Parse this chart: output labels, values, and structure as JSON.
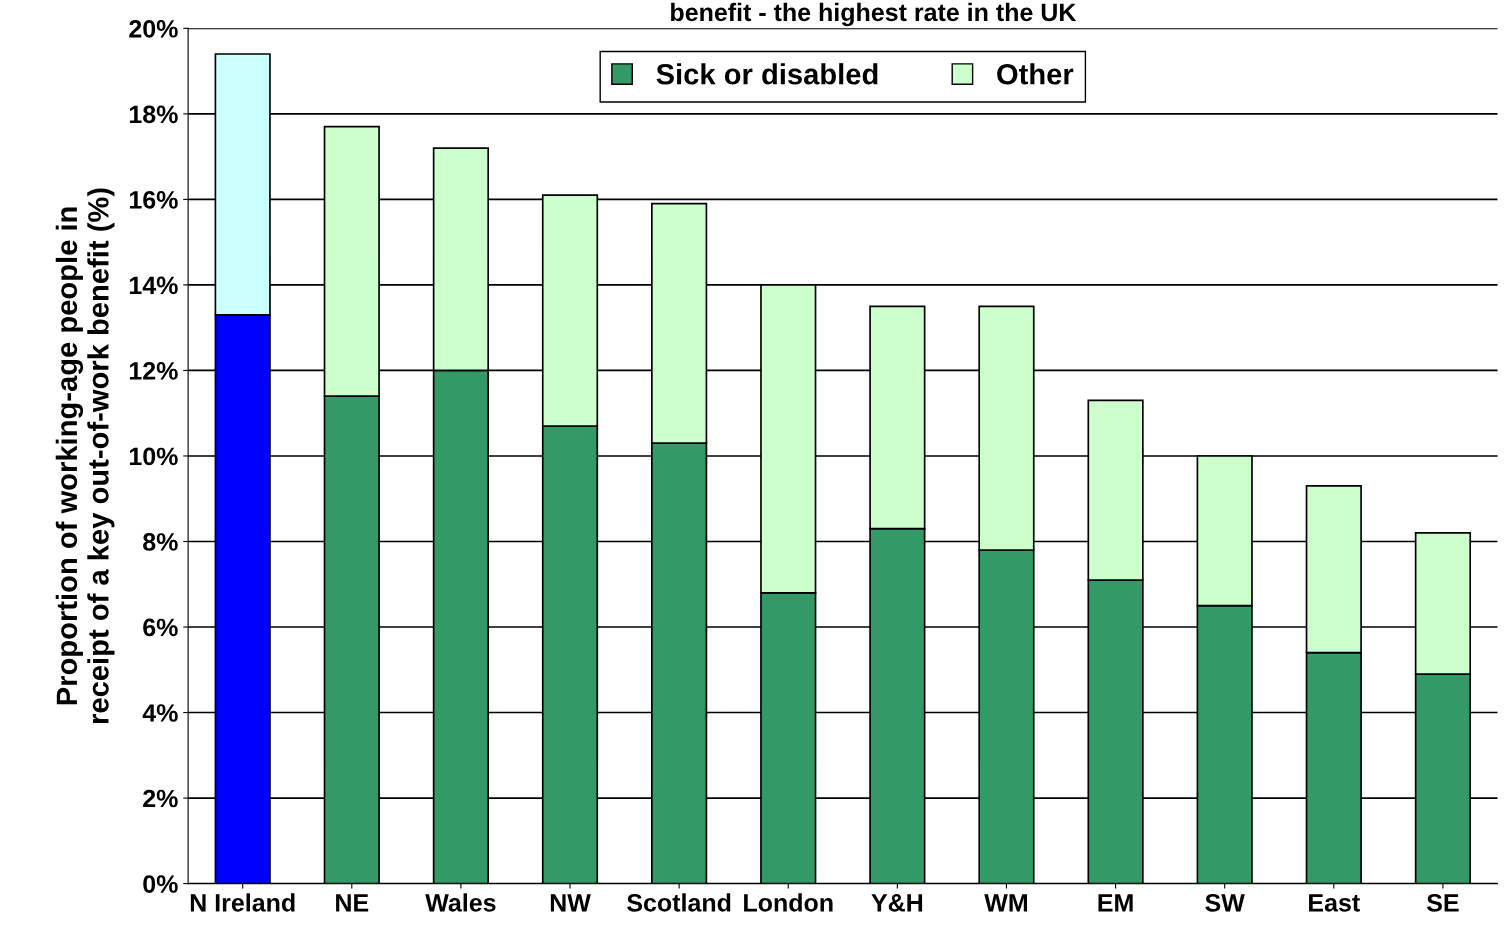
{
  "chart_data": {
    "type": "bar",
    "title": "benefit - the highest rate in the UK",
    "ylabel": "Proportion of working-age people in\nreceipt of a key out-of-work benefit (%)",
    "categories": [
      "N Ireland",
      "NE",
      "Wales",
      "NW",
      "Scotland",
      "London",
      "Y&H",
      "WM",
      "EM",
      "SW",
      "East",
      "SE"
    ],
    "stacked": true,
    "series": [
      {
        "name": "Sick or disabled",
        "color": "#339966",
        "colors": [
          "#0000ff",
          "#339966",
          "#339966",
          "#339966",
          "#339966",
          "#339966",
          "#339966",
          "#339966",
          "#339966",
          "#339966",
          "#339966",
          "#339966"
        ],
        "values": [
          13.3,
          11.4,
          12.0,
          10.7,
          10.3,
          6.8,
          8.3,
          7.8,
          7.1,
          6.5,
          5.4,
          4.9
        ]
      },
      {
        "name": "Other",
        "color": "#ccffcc",
        "colors": [
          "#ccffff",
          "#ccffcc",
          "#ccffcc",
          "#ccffcc",
          "#ccffcc",
          "#ccffcc",
          "#ccffcc",
          "#ccffcc",
          "#ccffcc",
          "#ccffcc",
          "#ccffcc",
          "#ccffcc"
        ],
        "values": [
          6.1,
          6.3,
          5.2,
          5.4,
          5.6,
          7.2,
          5.2,
          5.7,
          4.2,
          3.5,
          3.9,
          3.3
        ]
      }
    ],
    "ylim": [
      0,
      20
    ],
    "yticks": [
      {
        "value": 0,
        "label": "0%"
      },
      {
        "value": 2,
        "label": "2%"
      },
      {
        "value": 4,
        "label": "4%"
      },
      {
        "value": 6,
        "label": "6%"
      },
      {
        "value": 8,
        "label": "8%"
      },
      {
        "value": 10,
        "label": "10%"
      },
      {
        "value": 12,
        "label": "12%"
      },
      {
        "value": 14,
        "label": "14%"
      },
      {
        "value": 16,
        "label": "16%"
      },
      {
        "value": 18,
        "label": "18%"
      },
      {
        "value": 20,
        "label": "20%"
      }
    ],
    "grid": "y",
    "legend": "top"
  }
}
